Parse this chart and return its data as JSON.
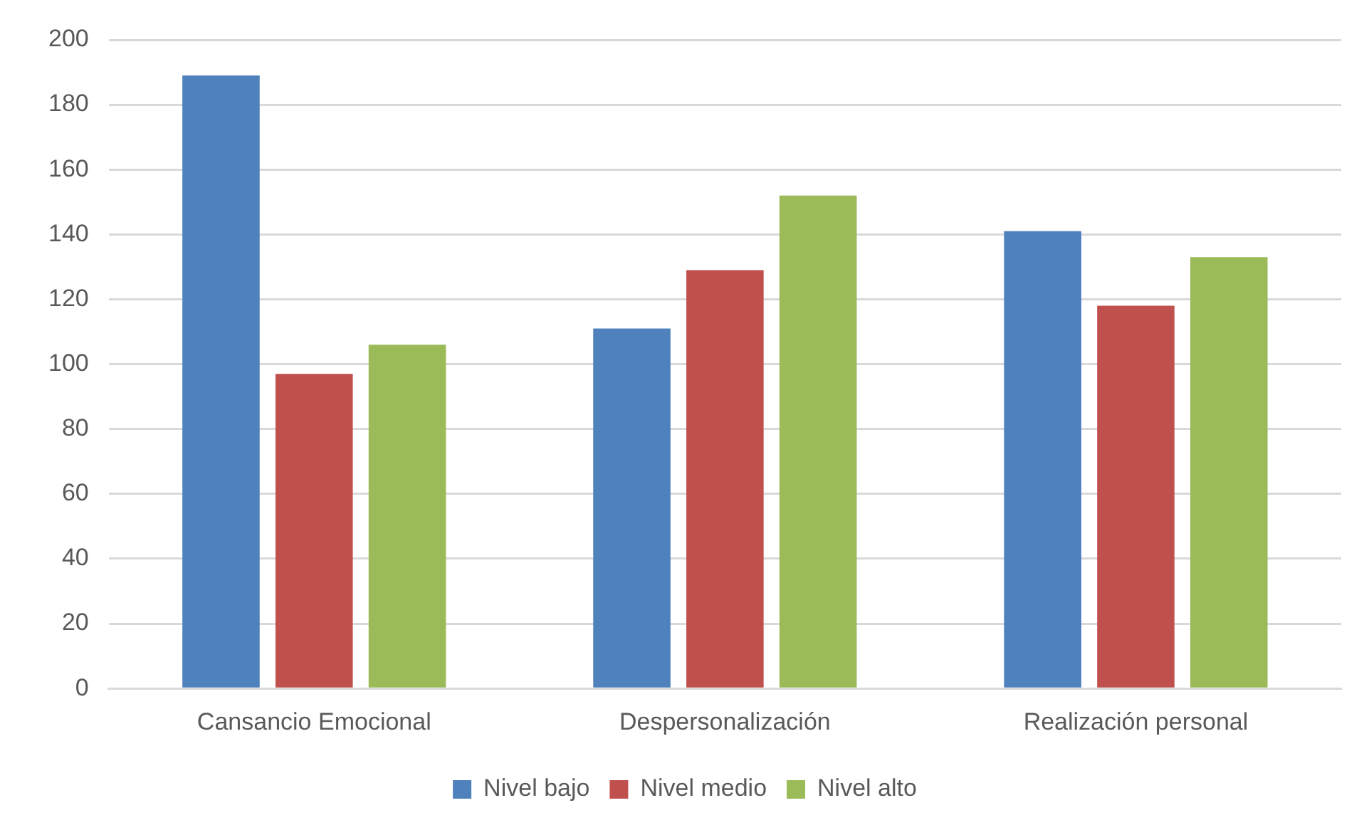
{
  "chart_data": {
    "type": "bar",
    "categories": [
      "Cansancio Emocional",
      "Despersonalización",
      "Realización personal"
    ],
    "series": [
      {
        "name": "Nivel bajo",
        "color": "#4f81bd",
        "values": [
          189,
          111,
          141
        ]
      },
      {
        "name": "Nivel medio",
        "color": "#c0504d",
        "values": [
          97,
          129,
          118
        ]
      },
      {
        "name": "Nivel alto",
        "color": "#9bbb59",
        "values": [
          106,
          152,
          133
        ]
      }
    ],
    "ylim": [
      0,
      200
    ],
    "yticks": [
      0,
      20,
      40,
      60,
      80,
      100,
      120,
      140,
      160,
      180,
      200
    ],
    "grid": "y",
    "legend": "bottom"
  }
}
